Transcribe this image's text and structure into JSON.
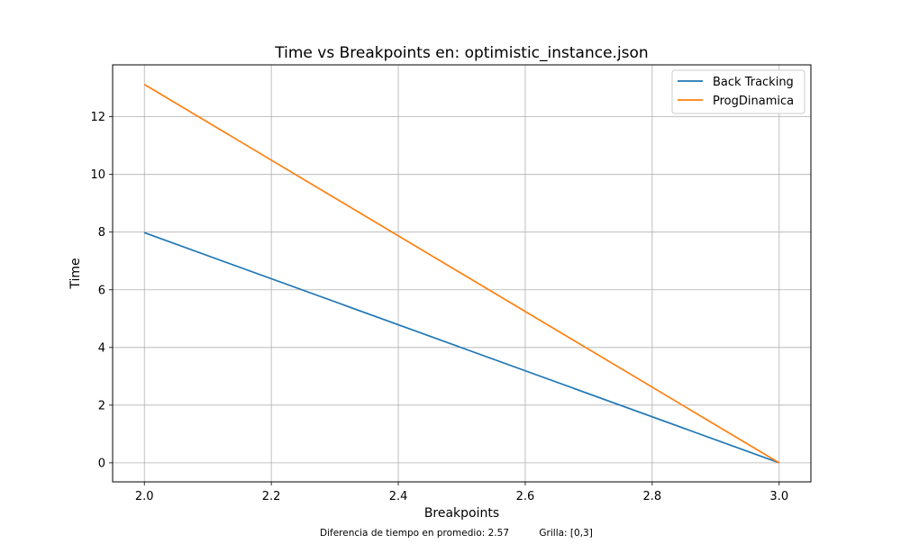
{
  "chart_data": {
    "type": "line",
    "title": "Time vs Breakpoints en: optimistic_instance.json",
    "xlabel": "Breakpoints",
    "ylabel": "Time",
    "x": [
      2.0,
      3.0
    ],
    "xlim": [
      1.95,
      3.05
    ],
    "ylim": [
      -0.66,
      13.8
    ],
    "xticks": [
      "2.0",
      "2.2",
      "2.4",
      "2.6",
      "2.8",
      "3.0"
    ],
    "yticks": [
      "0",
      "2",
      "4",
      "6",
      "8",
      "10",
      "12"
    ],
    "grid": true,
    "legend_position": "top-right",
    "series": [
      {
        "name": "Back Tracking",
        "color": "#1f77b4",
        "values": [
          7.98,
          0.0
        ]
      },
      {
        "name": "ProgDinamica",
        "color": "#ff7f0e",
        "values": [
          13.12,
          0.0
        ]
      }
    ]
  },
  "footer": {
    "diff_text": "Diferencia de tiempo en promedio: 2.57",
    "grid_text": "Grilla: [0,3]"
  }
}
